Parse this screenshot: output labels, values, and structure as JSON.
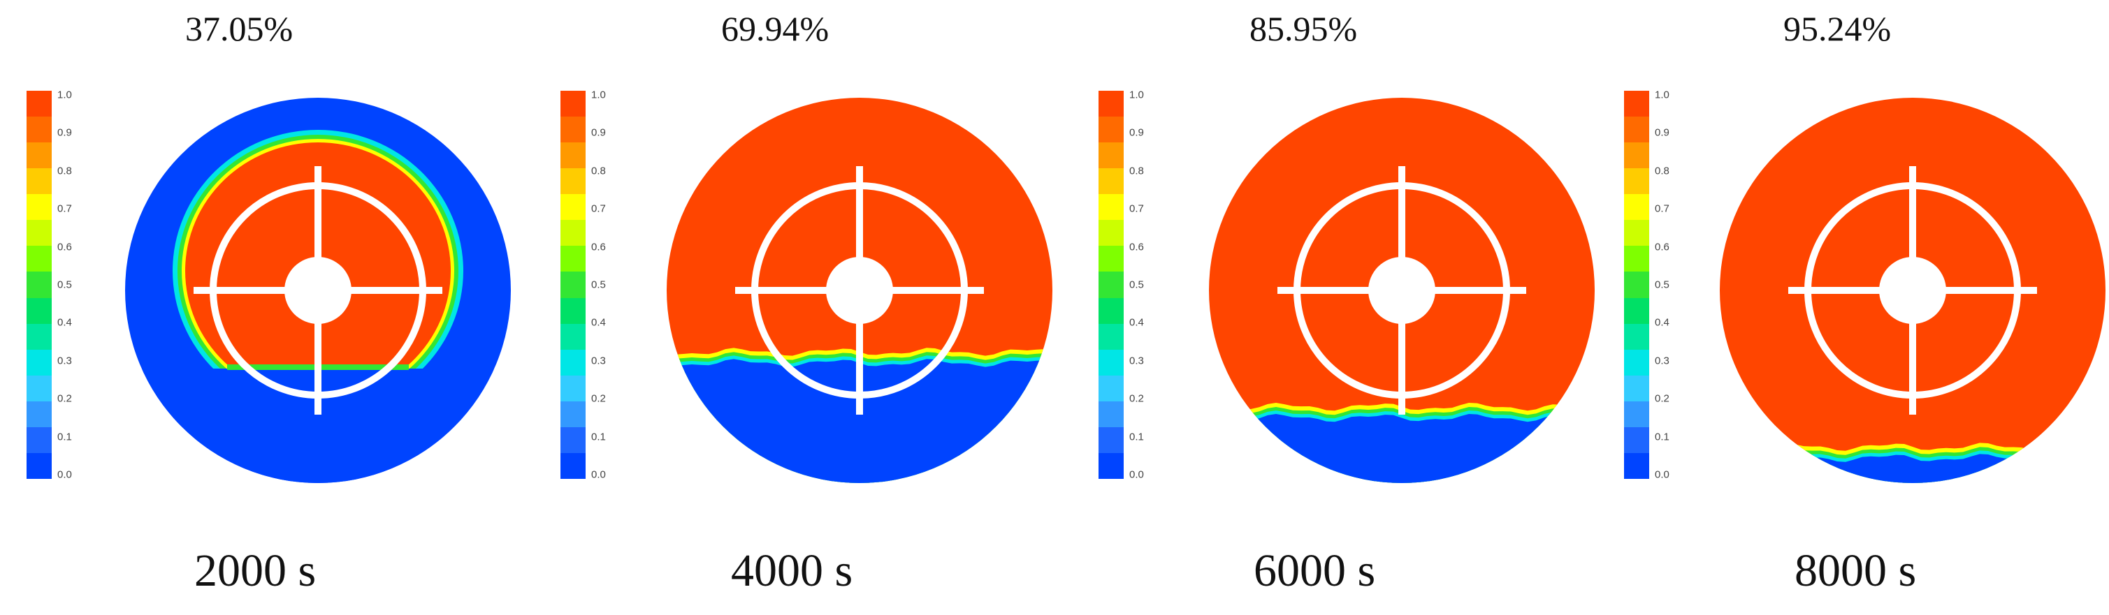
{
  "colorbar": {
    "ticks": [
      "1.0",
      "0.9",
      "0.8",
      "0.7",
      "0.6",
      "0.5",
      "0.4",
      "0.3",
      "0.2",
      "0.1",
      "0.0"
    ],
    "colors": [
      "#ff4500",
      "#ff6a00",
      "#ff9900",
      "#ffcc00",
      "#ffff00",
      "#ccff00",
      "#7fff00",
      "#33e633",
      "#00e066",
      "#00e6a0",
      "#00e6e6",
      "#33ccff",
      "#3399ff",
      "#1e66ff",
      "#0044ff"
    ]
  },
  "colors": {
    "liquid": "#ff4500",
    "empty": "#0044ff",
    "interface_mid": "#33e633",
    "interface_cyan": "#00e6e6",
    "interface_yellow": "#ffff00"
  },
  "panels": [
    {
      "percent_label": "37.05%",
      "time_label": "2000 s",
      "fill_fraction": 0.3705
    },
    {
      "percent_label": "69.94%",
      "time_label": "4000 s",
      "fill_fraction": 0.6994
    },
    {
      "percent_label": "85.95%",
      "time_label": "6000 s",
      "fill_fraction": 0.8595
    },
    {
      "percent_label": "95.24%",
      "time_label": "8000 s",
      "fill_fraction": 0.9524
    }
  ]
}
